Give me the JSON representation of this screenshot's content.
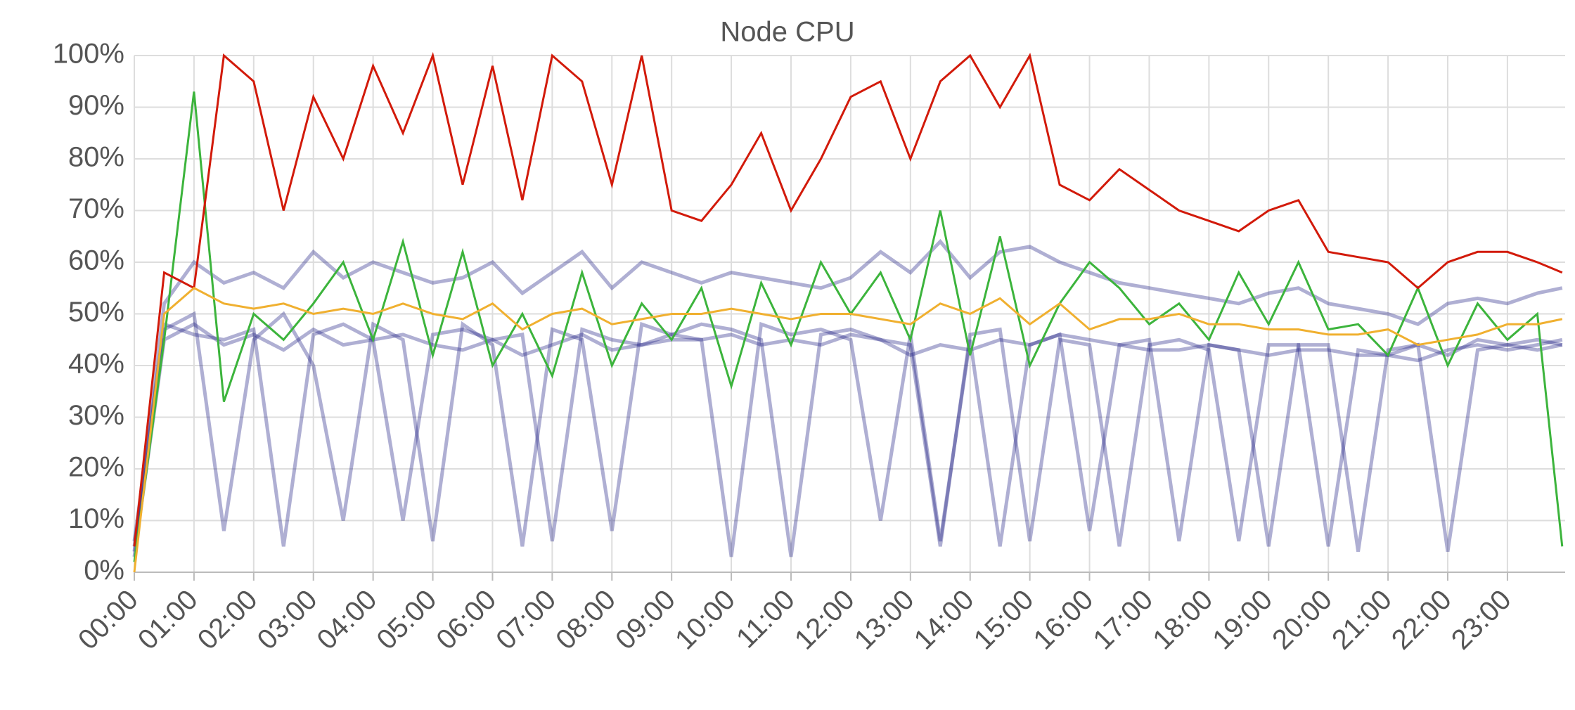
{
  "chart_data": {
    "type": "line",
    "title": "Node CPU",
    "x": [
      "00:00",
      "00:30",
      "01:00",
      "01:30",
      "02:00",
      "02:30",
      "03:00",
      "03:30",
      "04:00",
      "04:30",
      "05:00",
      "05:30",
      "06:00",
      "06:30",
      "07:00",
      "07:30",
      "08:00",
      "08:30",
      "09:00",
      "09:30",
      "10:00",
      "10:30",
      "11:00",
      "11:30",
      "12:00",
      "12:30",
      "13:00",
      "13:30",
      "14:00",
      "14:30",
      "15:00",
      "15:30",
      "16:00",
      "16:30",
      "17:00",
      "17:30",
      "18:00",
      "18:30",
      "19:00",
      "19:30",
      "20:00",
      "20:30",
      "21:00",
      "21:30",
      "22:00",
      "22:30",
      "23:00",
      "23:30",
      "23:55"
    ],
    "series": [
      {
        "color": "#1b1b80",
        "values": [
          3,
          45,
          48,
          44,
          46,
          43,
          47,
          44,
          45,
          46,
          44,
          43,
          45,
          42,
          44,
          46,
          43,
          44,
          45,
          45,
          46,
          44,
          45,
          44,
          46,
          45,
          42,
          44,
          43,
          45,
          44,
          46,
          45,
          44,
          43,
          43,
          44,
          43,
          42,
          43,
          43,
          42,
          42,
          41,
          43,
          44,
          43,
          44,
          45
        ]
      },
      {
        "color": "#1b1b80",
        "values": [
          4,
          52,
          60,
          56,
          58,
          55,
          62,
          57,
          60,
          58,
          56,
          57,
          60,
          54,
          58,
          62,
          55,
          60,
          58,
          56,
          58,
          57,
          56,
          55,
          57,
          62,
          58,
          64,
          57,
          62,
          63,
          60,
          58,
          56,
          55,
          54,
          53,
          52,
          54,
          55,
          52,
          51,
          50,
          48,
          52,
          53,
          52,
          54,
          55
        ]
      },
      {
        "color": "#1b1b80",
        "values": [
          5,
          47,
          50,
          8,
          45,
          50,
          40,
          10,
          48,
          45,
          6,
          48,
          44,
          5,
          47,
          45,
          8,
          48,
          46,
          45,
          3,
          48,
          46,
          47,
          45,
          10,
          46,
          6,
          45,
          5,
          44,
          46,
          8,
          44,
          45,
          6,
          44,
          43,
          5,
          44,
          44,
          4,
          43,
          44,
          42,
          45,
          44,
          43,
          44
        ]
      },
      {
        "color": "#1b1b80",
        "values": [
          6,
          48,
          46,
          45,
          47,
          5,
          46,
          48,
          45,
          10,
          46,
          47,
          45,
          46,
          6,
          47,
          45,
          44,
          46,
          48,
          47,
          45,
          3,
          46,
          47,
          45,
          44,
          5,
          46,
          47,
          6,
          45,
          44,
          5,
          44,
          45,
          43,
          6,
          44,
          44,
          5,
          43,
          42,
          44,
          4,
          43,
          44,
          45,
          44
        ]
      },
      {
        "color": "#3cb43c",
        "values": [
          2,
          45,
          93,
          33,
          50,
          45,
          52,
          60,
          45,
          64,
          42,
          62,
          40,
          50,
          38,
          58,
          40,
          52,
          45,
          55,
          36,
          56,
          44,
          60,
          50,
          58,
          45,
          70,
          42,
          65,
          40,
          52,
          60,
          55,
          48,
          52,
          45,
          58,
          48,
          60,
          47,
          48,
          42,
          55,
          40,
          52,
          45,
          50,
          5
        ]
      },
      {
        "color": "#d21a0a",
        "values": [
          5,
          58,
          55,
          100,
          95,
          70,
          92,
          80,
          98,
          85,
          100,
          75,
          98,
          72,
          100,
          95,
          75,
          100,
          70,
          68,
          75,
          85,
          70,
          80,
          92,
          95,
          80,
          95,
          100,
          90,
          100,
          75,
          72,
          78,
          74,
          70,
          68,
          66,
          70,
          72,
          62,
          61,
          60,
          55,
          60,
          62,
          62,
          60,
          58
        ]
      },
      {
        "color": "#f0b030",
        "values": [
          0,
          50,
          55,
          52,
          51,
          52,
          50,
          51,
          50,
          52,
          50,
          49,
          52,
          47,
          50,
          51,
          48,
          49,
          50,
          50,
          51,
          50,
          49,
          50,
          50,
          49,
          48,
          52,
          50,
          53,
          48,
          52,
          47,
          49,
          49,
          50,
          48,
          48,
          47,
          47,
          46,
          46,
          47,
          44,
          45,
          46,
          48,
          48,
          49
        ]
      }
    ],
    "xlim": [
      "00:00",
      "23:58"
    ],
    "xticks": [
      "00:00",
      "01:00",
      "02:00",
      "03:00",
      "04:00",
      "05:00",
      "06:00",
      "07:00",
      "08:00",
      "09:00",
      "10:00",
      "11:00",
      "12:00",
      "13:00",
      "14:00",
      "15:00",
      "16:00",
      "17:00",
      "18:00",
      "19:00",
      "20:00",
      "21:00",
      "22:00",
      "23:00"
    ],
    "ylim": [
      0,
      100
    ],
    "yticks": [
      {
        "value": 0,
        "label": "0%"
      },
      {
        "value": 10,
        "label": "10%"
      },
      {
        "value": 20,
        "label": "20%"
      },
      {
        "value": 30,
        "label": "30%"
      },
      {
        "value": 40,
        "label": "40%"
      },
      {
        "value": 50,
        "label": "50%"
      },
      {
        "value": 60,
        "label": "60%"
      },
      {
        "value": 70,
        "label": "70%"
      },
      {
        "value": 80,
        "label": "80%"
      },
      {
        "value": 90,
        "label": "90%"
      },
      {
        "value": 100,
        "label": "100%"
      }
    ],
    "grid": true
  }
}
